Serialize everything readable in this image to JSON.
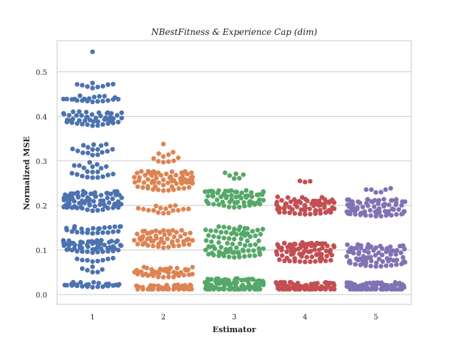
{
  "chart_data": {
    "type": "scatter",
    "subtype": "swarm",
    "title": "NBestFitness & Experience Cap (dim)",
    "xlabel": "Estimator",
    "ylabel": "Normalized MSE",
    "categories": [
      "1",
      "2",
      "3",
      "4",
      "5"
    ],
    "ylim": [
      -0.022,
      0.57
    ],
    "yticks": [
      0.0,
      0.1,
      0.2,
      0.3,
      0.4,
      0.5
    ],
    "ytick_labels": [
      "0.0",
      "0.1",
      "0.2",
      "0.3",
      "0.4",
      "0.5"
    ],
    "grid": "horizontal",
    "legend": "none",
    "series": [
      {
        "category": "1",
        "color": "#4c72b0",
        "clusters": [
          {
            "center": 0.022,
            "spread": 0.006,
            "count": 26
          },
          {
            "center": 0.065,
            "spread": 0.018,
            "count": 14
          },
          {
            "center": 0.108,
            "spread": 0.014,
            "count": 58
          },
          {
            "center": 0.145,
            "spread": 0.01,
            "count": 24
          },
          {
            "center": 0.21,
            "spread": 0.022,
            "count": 80
          },
          {
            "center": 0.28,
            "spread": 0.018,
            "count": 20
          },
          {
            "center": 0.33,
            "spread": 0.018,
            "count": 16
          },
          {
            "center": 0.395,
            "spread": 0.016,
            "count": 48
          },
          {
            "center": 0.44,
            "spread": 0.008,
            "count": 20
          },
          {
            "center": 0.468,
            "spread": 0.007,
            "count": 9
          },
          {
            "center": 0.545,
            "spread": 0.0,
            "count": 1
          }
        ]
      },
      {
        "category": "2",
        "color": "#dd8452",
        "clusters": [
          {
            "center": 0.015,
            "spread": 0.007,
            "count": 42
          },
          {
            "center": 0.05,
            "spread": 0.013,
            "count": 46
          },
          {
            "center": 0.125,
            "spread": 0.02,
            "count": 56
          },
          {
            "center": 0.185,
            "spread": 0.015,
            "count": 16
          },
          {
            "center": 0.255,
            "spread": 0.022,
            "count": 72
          },
          {
            "center": 0.31,
            "spread": 0.014,
            "count": 10
          },
          {
            "center": 0.338,
            "spread": 0.0,
            "count": 1
          }
        ]
      },
      {
        "category": "3",
        "color": "#55a868",
        "clusters": [
          {
            "center": 0.022,
            "spread": 0.014,
            "count": 100
          },
          {
            "center": 0.118,
            "spread": 0.035,
            "count": 80
          },
          {
            "center": 0.215,
            "spread": 0.02,
            "count": 66
          },
          {
            "center": 0.27,
            "spread": 0.012,
            "count": 6
          }
        ]
      },
      {
        "category": "4",
        "color": "#c44e52",
        "clusters": [
          {
            "center": 0.018,
            "spread": 0.01,
            "count": 84
          },
          {
            "center": 0.095,
            "spread": 0.022,
            "count": 84
          },
          {
            "center": 0.2,
            "spread": 0.02,
            "count": 74
          },
          {
            "center": 0.255,
            "spread": 0.005,
            "count": 3
          }
        ]
      },
      {
        "category": "5",
        "color": "#8172b3",
        "clusters": [
          {
            "center": 0.018,
            "spread": 0.01,
            "count": 90
          },
          {
            "center": 0.088,
            "spread": 0.025,
            "count": 80
          },
          {
            "center": 0.195,
            "spread": 0.019,
            "count": 72
          },
          {
            "center": 0.232,
            "spread": 0.007,
            "count": 6
          }
        ]
      }
    ]
  },
  "style": {
    "grid_color": "#cccccc",
    "frame_color": "#c8c8c8"
  }
}
